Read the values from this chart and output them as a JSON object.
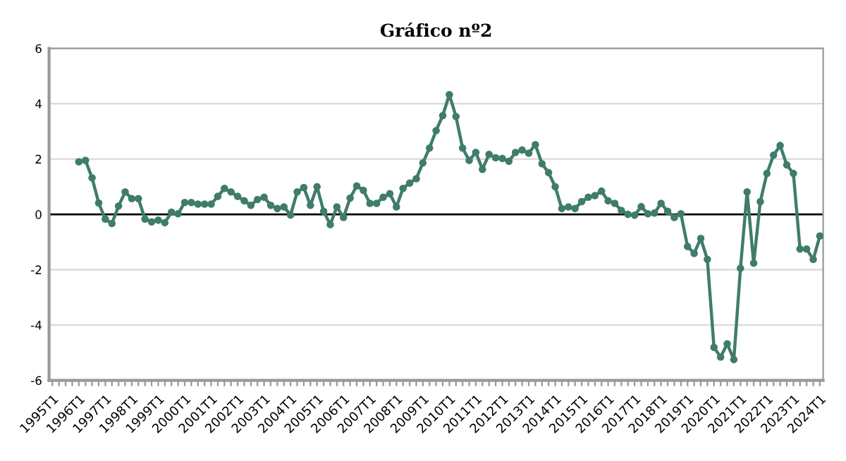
{
  "chart_data": {
    "type": "line",
    "title": "Gráfico nº2",
    "categories": [
      "1995T1",
      null,
      null,
      null,
      "1996T1",
      null,
      null,
      null,
      "1997T1",
      null,
      null,
      null,
      "1998T1",
      null,
      null,
      null,
      "1999T1",
      null,
      null,
      null,
      "2000T1",
      null,
      null,
      null,
      "2001T1",
      null,
      null,
      null,
      "2002T1",
      null,
      null,
      null,
      "2003T1",
      null,
      null,
      null,
      "2004T1",
      null,
      null,
      null,
      "2005T1",
      null,
      null,
      null,
      "2006T1",
      null,
      null,
      null,
      "2007T1",
      null,
      null,
      null,
      "2008T1",
      null,
      null,
      null,
      "2009T1",
      null,
      null,
      null,
      "2010T1",
      null,
      null,
      null,
      "2011T1",
      null,
      null,
      null,
      "2012T1",
      null,
      null,
      null,
      "2013T1",
      null,
      null,
      null,
      "2014T1",
      null,
      null,
      null,
      "2015T1",
      null,
      null,
      null,
      "2016T1",
      null,
      null,
      null,
      "2017T1",
      null,
      null,
      null,
      "2018T1",
      null,
      null,
      null,
      "2019T1",
      null,
      null,
      null,
      "2020T1",
      null,
      null,
      null,
      "2021T1",
      null,
      null,
      null,
      "2022T1",
      null,
      null,
      null,
      "2023T1",
      null,
      null,
      null,
      "2024T1"
    ],
    "series": [
      {
        "color": "#3f7c6c",
        "values": [
          null,
          null,
          null,
          null,
          1.9,
          1.95,
          1.32,
          0.41,
          -0.17,
          -0.33,
          0.3,
          0.81,
          0.57,
          0.57,
          -0.17,
          -0.27,
          -0.21,
          -0.3,
          0.08,
          0.02,
          0.43,
          0.43,
          0.37,
          0.37,
          0.37,
          0.65,
          0.94,
          0.81,
          0.65,
          0.49,
          0.33,
          0.54,
          0.62,
          0.33,
          0.21,
          0.27,
          -0.02,
          0.81,
          0.97,
          0.33,
          1.0,
          0.11,
          -0.37,
          0.27,
          -0.11,
          0.59,
          1.03,
          0.87,
          0.4,
          0.4,
          0.62,
          0.75,
          0.27,
          0.94,
          1.13,
          1.29,
          1.86,
          2.4,
          3.03,
          3.57,
          4.33,
          3.54,
          2.4,
          1.95,
          2.24,
          1.63,
          2.17,
          2.05,
          2.02,
          1.92,
          2.24,
          2.33,
          2.21,
          2.52,
          1.83,
          1.51,
          1.0,
          0.21,
          0.27,
          0.21,
          0.46,
          0.62,
          0.68,
          0.84,
          0.49,
          0.4,
          0.14,
          0.0,
          -0.03,
          0.28,
          0.02,
          0.05,
          0.4,
          0.11,
          -0.11,
          0.02,
          -1.16,
          -1.41,
          -0.87,
          -1.63,
          -4.81,
          -5.16,
          -4.68,
          -5.25,
          -1.95,
          0.81,
          -1.76,
          0.46,
          1.48,
          2.14,
          2.49,
          1.79,
          1.48,
          -1.25,
          -1.25,
          -1.63,
          -0.78
        ]
      }
    ],
    "ylim": [
      -6,
      6
    ],
    "yticks": [
      -6,
      -4,
      -2,
      0,
      2,
      4,
      6
    ],
    "grid": "y",
    "marker": "circle",
    "line_style": "solid",
    "ref_lines": [
      {
        "axis": "y",
        "value": 0,
        "color": "#000000"
      }
    ]
  }
}
